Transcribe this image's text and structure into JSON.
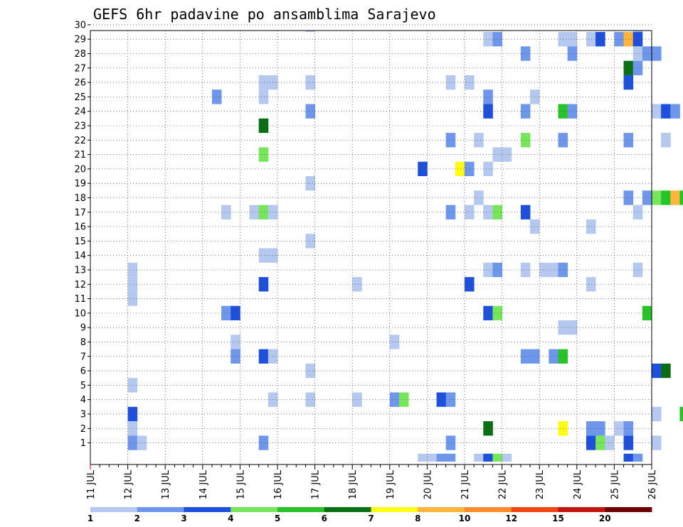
{
  "chart_data": {
    "type": "heatmap",
    "title": "GEFS 6hr padavine po ansamblima Sarajevo",
    "x_ticks": [
      "11 JUL",
      "12 JUL",
      "13 JUL",
      "14 JUL",
      "15 JUL",
      "16 JUL",
      "17 JUL",
      "18 JUL",
      "19 JUL",
      "20 JUL",
      "21 JUL",
      "22 JUL",
      "23 JUL",
      "24 JUL",
      "25 JUL",
      "26 JUL"
    ],
    "y_ticks": [
      1,
      2,
      3,
      4,
      5,
      6,
      7,
      8,
      9,
      10,
      11,
      12,
      13,
      14,
      15,
      16,
      17,
      18,
      19,
      20,
      21,
      22,
      23,
      24,
      25,
      26,
      27,
      28,
      29,
      30
    ],
    "xlim": [
      "11 JUL 00Z",
      "26 JUL 00Z"
    ],
    "ylim": [
      0,
      30
    ],
    "x_step_hours": 6,
    "grid": true,
    "colorbar": {
      "position": "bottom",
      "labels": [
        "1",
        "2",
        "3",
        "4",
        "5",
        "6",
        "7",
        "8",
        "10",
        "12",
        "15",
        "20"
      ],
      "colors": [
        "#b4c8f0",
        "#6e96eb",
        "#1e50dc",
        "#78e65a",
        "#28c328",
        "#0a6e14",
        "#ffff14",
        "#ffb43c",
        "#ff8c28",
        "#f04614",
        "#c31414",
        "#6e0000"
      ]
    },
    "cells_note": "each cell = [x, y, level]; x = 6-hour step index counted from 11 JUL 00Z, y = ensemble member (0 = control row), level = colour class index into colorbar.colors",
    "cells": [
      [
        4,
        13,
        0
      ],
      [
        4,
        12,
        0
      ],
      [
        4,
        11,
        0
      ],
      [
        4,
        5,
        0
      ],
      [
        4,
        3,
        2
      ],
      [
        4,
        2,
        0
      ],
      [
        4,
        1,
        1
      ],
      [
        5,
        1,
        0
      ],
      [
        13,
        25,
        1
      ],
      [
        14,
        10,
        1
      ],
      [
        15,
        10,
        2
      ],
      [
        14,
        17,
        0
      ],
      [
        15,
        8,
        0
      ],
      [
        15,
        7,
        1
      ],
      [
        18,
        26,
        0
      ],
      [
        19,
        26,
        0
      ],
      [
        18,
        25,
        0
      ],
      [
        18,
        23,
        5
      ],
      [
        18,
        21,
        3
      ],
      [
        17,
        17,
        0
      ],
      [
        18,
        17,
        3
      ],
      [
        19,
        17,
        0
      ],
      [
        18,
        14,
        0
      ],
      [
        19,
        14,
        0
      ],
      [
        18,
        12,
        2
      ],
      [
        18,
        7,
        2
      ],
      [
        19,
        7,
        0
      ],
      [
        19,
        4,
        0
      ],
      [
        18,
        1,
        1
      ],
      [
        23,
        30,
        0
      ],
      [
        23,
        26,
        0
      ],
      [
        23,
        24,
        1
      ],
      [
        23,
        19,
        0
      ],
      [
        23,
        15,
        0
      ],
      [
        23,
        6,
        0
      ],
      [
        23,
        4,
        0
      ],
      [
        28,
        12,
        0
      ],
      [
        28,
        4,
        0
      ],
      [
        32,
        4,
        1
      ],
      [
        33,
        4,
        3
      ],
      [
        32,
        8,
        0
      ],
      [
        35,
        0,
        0
      ],
      [
        36,
        0,
        0
      ],
      [
        35,
        20,
        2
      ],
      [
        37,
        4,
        2
      ],
      [
        38,
        4,
        1
      ],
      [
        37,
        0,
        1
      ],
      [
        38,
        0,
        1
      ],
      [
        38,
        22,
        1
      ],
      [
        38,
        17,
        1
      ],
      [
        38,
        1,
        1
      ],
      [
        38,
        26,
        0
      ],
      [
        40,
        26,
        0
      ],
      [
        39,
        20,
        6
      ],
      [
        40,
        20,
        1
      ],
      [
        40,
        12,
        2
      ],
      [
        40,
        17,
        0
      ],
      [
        41,
        22,
        0
      ],
      [
        41,
        18,
        0
      ],
      [
        42,
        29,
        0
      ],
      [
        43,
        29,
        1
      ],
      [
        42,
        25,
        1
      ],
      [
        42,
        24,
        2
      ],
      [
        42,
        20,
        0
      ],
      [
        42,
        17,
        0
      ],
      [
        43,
        17,
        3
      ],
      [
        42,
        13,
        0
      ],
      [
        43,
        13,
        1
      ],
      [
        42,
        10,
        2
      ],
      [
        43,
        10,
        3
      ],
      [
        42,
        2,
        5
      ],
      [
        41,
        0,
        0
      ],
      [
        42,
        0,
        2
      ],
      [
        43,
        0,
        3
      ],
      [
        44,
        0,
        0
      ],
      [
        43,
        21,
        0
      ],
      [
        44,
        21,
        0
      ],
      [
        46,
        28,
        1
      ],
      [
        46,
        24,
        1
      ],
      [
        46,
        22,
        3
      ],
      [
        46,
        17,
        2
      ],
      [
        46,
        13,
        0
      ],
      [
        46,
        7,
        1
      ],
      [
        47,
        7,
        1
      ],
      [
        47,
        25,
        0
      ],
      [
        47,
        16,
        0
      ],
      [
        48,
        13,
        0
      ],
      [
        49,
        13,
        0
      ],
      [
        50,
        13,
        1
      ],
      [
        49,
        7,
        1
      ],
      [
        50,
        7,
        4
      ],
      [
        50,
        29,
        0
      ],
      [
        51,
        29,
        0
      ],
      [
        50,
        24,
        4
      ],
      [
        51,
        24,
        1
      ],
      [
        50,
        22,
        1
      ],
      [
        51,
        28,
        1
      ],
      [
        50,
        9,
        0
      ],
      [
        51,
        9,
        0
      ],
      [
        50,
        2,
        6
      ],
      [
        53,
        29,
        0
      ],
      [
        54,
        29,
        2
      ],
      [
        53,
        16,
        0
      ],
      [
        53,
        12,
        0
      ],
      [
        53,
        2,
        1
      ],
      [
        54,
        2,
        1
      ],
      [
        53,
        1,
        2
      ],
      [
        54,
        1,
        3
      ],
      [
        55,
        1,
        0
      ],
      [
        56,
        29,
        1
      ],
      [
        57,
        29,
        7
      ],
      [
        58,
        29,
        2
      ],
      [
        57,
        27,
        5
      ],
      [
        58,
        27,
        1
      ],
      [
        57,
        26,
        2
      ],
      [
        57,
        22,
        1
      ],
      [
        57,
        18,
        1
      ],
      [
        58,
        17,
        0
      ],
      [
        58,
        13,
        0
      ],
      [
        56,
        2,
        0
      ],
      [
        57,
        2,
        1
      ],
      [
        57,
        1,
        2
      ],
      [
        57,
        0,
        2
      ],
      [
        58,
        0,
        1
      ],
      [
        58,
        30,
        0
      ],
      [
        58,
        28,
        0
      ],
      [
        59,
        28,
        1
      ],
      [
        60,
        28,
        1
      ],
      [
        59,
        18,
        1
      ],
      [
        60,
        18,
        3
      ],
      [
        61,
        18,
        4
      ],
      [
        62,
        18,
        7
      ],
      [
        63,
        18,
        4
      ],
      [
        64,
        18,
        2
      ],
      [
        65,
        18,
        7
      ],
      [
        66,
        18,
        3
      ],
      [
        59,
        10,
        4
      ],
      [
        60,
        24,
        0
      ],
      [
        61,
        24,
        2
      ],
      [
        62,
        24,
        1
      ],
      [
        61,
        22,
        0
      ],
      [
        60,
        6,
        2
      ],
      [
        61,
        6,
        5
      ],
      [
        60,
        3,
        0
      ],
      [
        63,
        3,
        4
      ],
      [
        64,
        3,
        11
      ],
      [
        65,
        3,
        0
      ],
      [
        60,
        1,
        0
      ],
      [
        64,
        21,
        4
      ],
      [
        65,
        21,
        2
      ],
      [
        65,
        22,
        0
      ],
      [
        66,
        24,
        0
      ],
      [
        65,
        2,
        4
      ],
      [
        66,
        2,
        4
      ],
      [
        67,
        2,
        5
      ],
      [
        67,
        1,
        1
      ],
      [
        67,
        30,
        6
      ]
    ]
  }
}
